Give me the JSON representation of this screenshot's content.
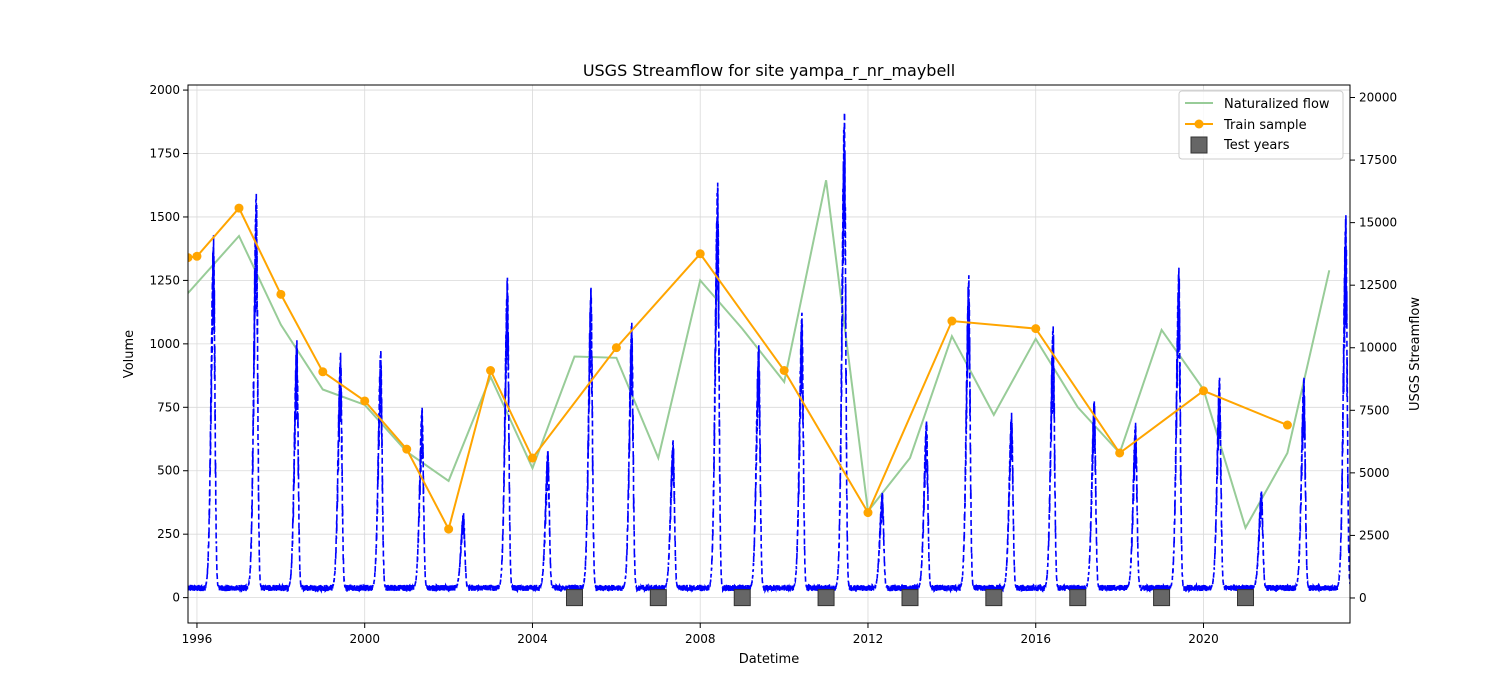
{
  "chart_data": {
    "type": "line",
    "title": "USGS Streamflow for site yampa_r_nr_maybell",
    "xlabel": "Datetime",
    "ylabel": "Volume",
    "ylabel_right": "USGS Streamflow",
    "x_range": [
      "1995-10-15",
      "2023-06-30"
    ],
    "y_left_range": [
      -100,
      2020
    ],
    "y_right_range": [
      -1000,
      20500
    ],
    "x_ticks": [
      "1996",
      "2000",
      "2004",
      "2008",
      "2012",
      "2016",
      "2020"
    ],
    "y_left_ticks": [
      0,
      250,
      500,
      750,
      1000,
      1250,
      1500,
      1750,
      2000
    ],
    "y_right_ticks": [
      0,
      2500,
      5000,
      7500,
      10000,
      12500,
      15000,
      17500,
      20000
    ],
    "grid": true,
    "legend_position": "top-right",
    "legend": [
      {
        "label": "Naturalized flow"
      },
      {
        "label": "Train sample"
      },
      {
        "label": "Test years"
      }
    ],
    "colors": {
      "naturalized": "#98cc98",
      "train": "#ffa500",
      "streamflow": "#0000ff",
      "test_marker": "#666666"
    },
    "naturalized_flow": {
      "name": "Naturalized flow",
      "x": [
        "1995-10-15",
        "1997-01-01",
        "1998-01-01",
        "1999-01-01",
        "2000-01-01",
        "2001-01-01",
        "2002-01-01",
        "2003-01-01",
        "2004-01-01",
        "2005-01-01",
        "2006-01-01",
        "2007-01-01",
        "2008-01-01",
        "2009-01-01",
        "2010-01-01",
        "2011-01-01",
        "2012-01-01",
        "2013-01-01",
        "2014-01-01",
        "2015-01-01",
        "2016-01-01",
        "2017-01-01",
        "2018-01-01",
        "2019-01-01",
        "2020-01-01",
        "2021-01-01",
        "2022-01-01",
        "2023-01-01"
      ],
      "y": [
        1200,
        1425,
        1075,
        820,
        760,
        575,
        460,
        870,
        510,
        950,
        945,
        550,
        1250,
        1060,
        850,
        1645,
        340,
        550,
        1030,
        720,
        1020,
        750,
        570,
        1055,
        820,
        275,
        570,
        1290
      ]
    },
    "train_sample": {
      "name": "Train sample",
      "x": [
        "1995-10-15",
        "1996-01-01",
        "1997-01-01",
        "1998-01-01",
        "1999-01-01",
        "2000-01-01",
        "2001-01-01",
        "2002-01-01",
        "2003-01-01",
        "2004-01-01",
        "2006-01-01",
        "2008-01-01",
        "2010-01-01",
        "2012-01-01",
        "2014-01-01",
        "2016-01-01",
        "2018-01-01",
        "2020-01-01",
        "2022-01-01"
      ],
      "y": [
        1340,
        1345,
        1535,
        1195,
        890,
        775,
        585,
        270,
        895,
        550,
        985,
        1355,
        895,
        335,
        1090,
        1060,
        570,
        815,
        680
      ]
    },
    "test_years": {
      "name": "Test years",
      "x": [
        "2005-01-01",
        "2007-01-01",
        "2009-01-01",
        "2011-01-01",
        "2013-01-01",
        "2015-01-01",
        "2017-01-01",
        "2019-01-01",
        "2021-01-01"
      ],
      "y": [
        0,
        0,
        0,
        0,
        0,
        0,
        0,
        0,
        0
      ]
    },
    "usgs_streamflow": {
      "name": "USGS Streamflow",
      "axis": "right",
      "baseline": 400,
      "peaks": [
        {
          "year": 1996,
          "date": "1996-05-25",
          "peak": 14500
        },
        {
          "year": 1997,
          "date": "1997-06-01",
          "peak": 16200
        },
        {
          "year": 1998,
          "date": "1998-05-20",
          "peak": 10300
        },
        {
          "year": 1999,
          "date": "1999-06-05",
          "peak": 9800
        },
        {
          "year": 2000,
          "date": "2000-05-20",
          "peak": 9900
        },
        {
          "year": 2001,
          "date": "2001-05-15",
          "peak": 7600
        },
        {
          "year": 2002,
          "date": "2002-05-10",
          "peak": 3400
        },
        {
          "year": 2003,
          "date": "2003-05-28",
          "peak": 12800
        },
        {
          "year": 2004,
          "date": "2004-05-15",
          "peak": 5900
        },
        {
          "year": 2005,
          "date": "2005-05-25",
          "peak": 12400
        },
        {
          "year": 2006,
          "date": "2006-05-15",
          "peak": 11000
        },
        {
          "year": 2007,
          "date": "2007-05-10",
          "peak": 6300
        },
        {
          "year": 2008,
          "date": "2008-06-01",
          "peak": 16600
        },
        {
          "year": 2009,
          "date": "2009-05-25",
          "peak": 10100
        },
        {
          "year": 2010,
          "date": "2010-06-05",
          "peak": 11400
        },
        {
          "year": 2011,
          "date": "2011-06-10",
          "peak": 19400
        },
        {
          "year": 2012,
          "date": "2012-05-05",
          "peak": 4200
        },
        {
          "year": 2013,
          "date": "2013-05-25",
          "peak": 7100
        },
        {
          "year": 2014,
          "date": "2014-05-28",
          "peak": 12900
        },
        {
          "year": 2015,
          "date": "2015-06-05",
          "peak": 7400
        },
        {
          "year": 2016,
          "date": "2016-06-01",
          "peak": 10900
        },
        {
          "year": 2017,
          "date": "2017-05-25",
          "peak": 7900
        },
        {
          "year": 2018,
          "date": "2018-05-20",
          "peak": 7000
        },
        {
          "year": 2019,
          "date": "2019-06-01",
          "peak": 13200
        },
        {
          "year": 2020,
          "date": "2020-05-20",
          "peak": 8800
        },
        {
          "year": 2021,
          "date": "2021-05-20",
          "peak": 4300
        },
        {
          "year": 2022,
          "date": "2022-05-25",
          "peak": 8800
        },
        {
          "year": 2023,
          "date": "2023-05-25",
          "peak": 15300
        }
      ]
    }
  }
}
